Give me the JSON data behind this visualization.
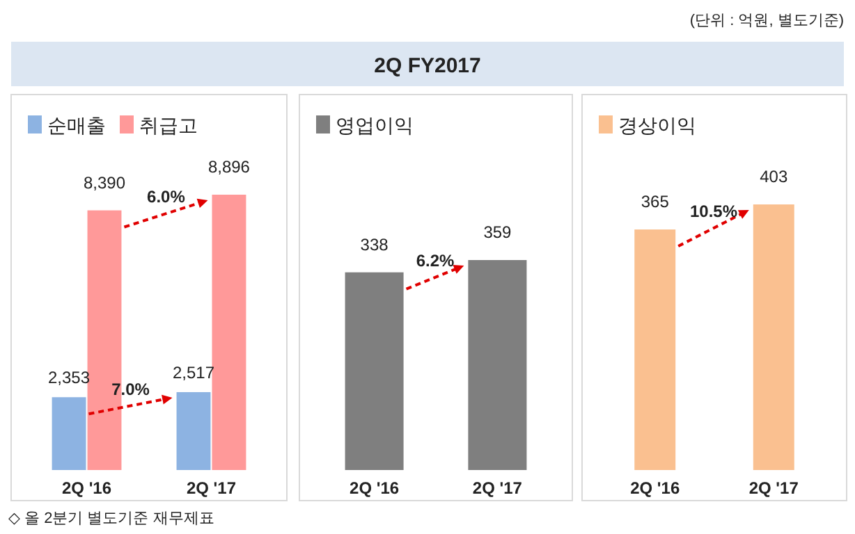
{
  "chart_data": [
    {
      "type": "bar",
      "categories": [
        "2Q '16",
        "2Q '17"
      ],
      "series": [
        {
          "name": "순매출",
          "color": "#8db3e2",
          "values": [
            2353,
            2517
          ],
          "value_labels": [
            "2,353",
            "2,517"
          ]
        },
        {
          "name": "취급고",
          "color": "#ff9999",
          "values": [
            8390,
            8896
          ],
          "value_labels": [
            "8,390",
            "8,896"
          ]
        }
      ],
      "annotations": [
        "7.0%",
        "6.0%",
        "◇ 올 2분기 별도기준 재무제표"
      ],
      "legend": "top left"
    },
    {
      "type": "bar",
      "title": "2Q FY2017",
      "categories": [
        "2Q '16",
        "2Q '17"
      ],
      "series": [
        {
          "name": "영업이익",
          "color": "#7f7f7f",
          "values": [
            338,
            359
          ]
        }
      ],
      "annotations": [
        "6.2%"
      ],
      "data_labels": true,
      "legend": "top left"
    },
    {
      "type": "bar",
      "subtitle": "(단위 : 억원, 별도기준)",
      "categories": [
        "2Q '16",
        "2Q '17"
      ],
      "series": [
        {
          "name": "경상이익",
          "color": "#fac090",
          "values": [
            365,
            403
          ]
        }
      ],
      "annotations": [
        "10.5%"
      ],
      "data_labels": true,
      "legend": "top left"
    }
  ]
}
